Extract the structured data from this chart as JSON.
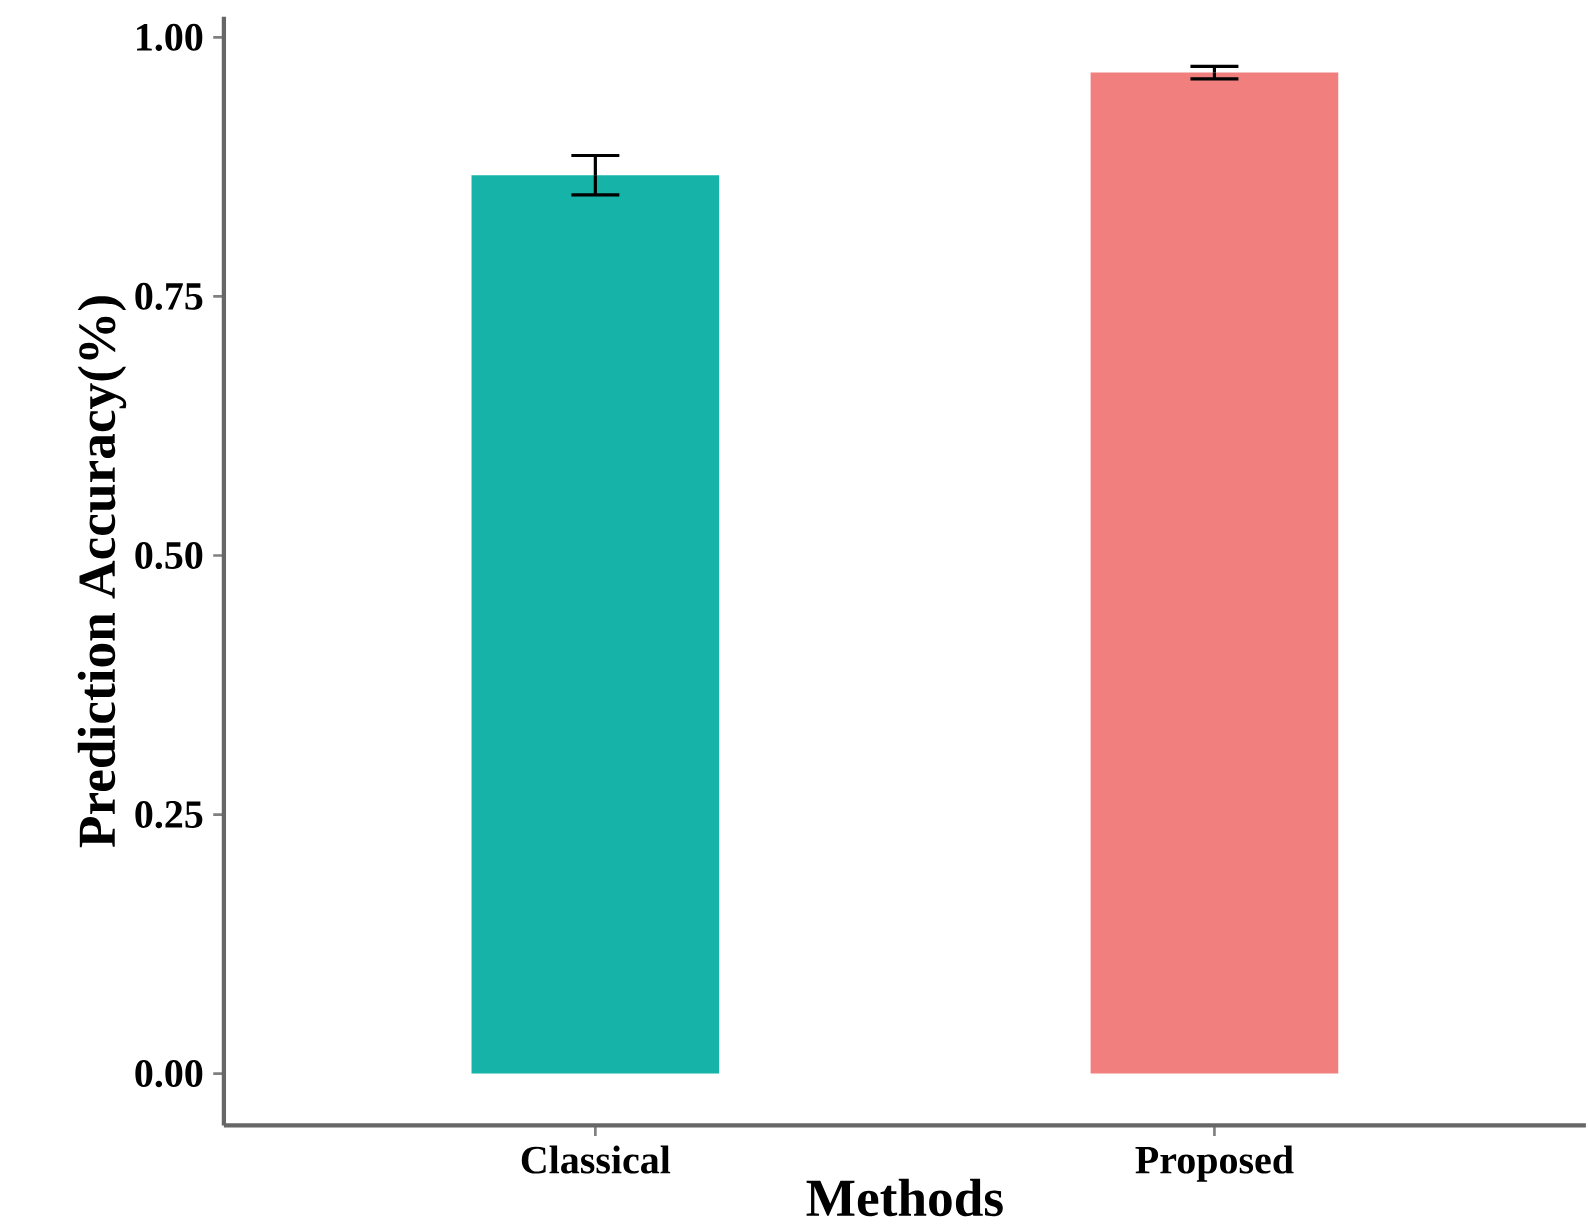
{
  "chart_data": {
    "type": "bar",
    "xlabel": "Methods",
    "ylabel": "Prediction Accuracy(%)",
    "categories": [
      "Classical",
      "Proposed"
    ],
    "values": [
      0.867,
      0.966
    ],
    "errors": [
      0.019,
      0.006
    ],
    "colors": [
      "#15b3a8",
      "#f07f7e"
    ],
    "ylim": [
      -0.05,
      1.02
    ],
    "yticks": [
      {
        "value": 0,
        "label": "0.00"
      },
      {
        "value": 0.25,
        "label": "0.25"
      },
      {
        "value": 0.5,
        "label": "0.50"
      },
      {
        "value": 0.75,
        "label": "0.75"
      },
      {
        "value": 1,
        "label": "1.00"
      }
    ]
  }
}
